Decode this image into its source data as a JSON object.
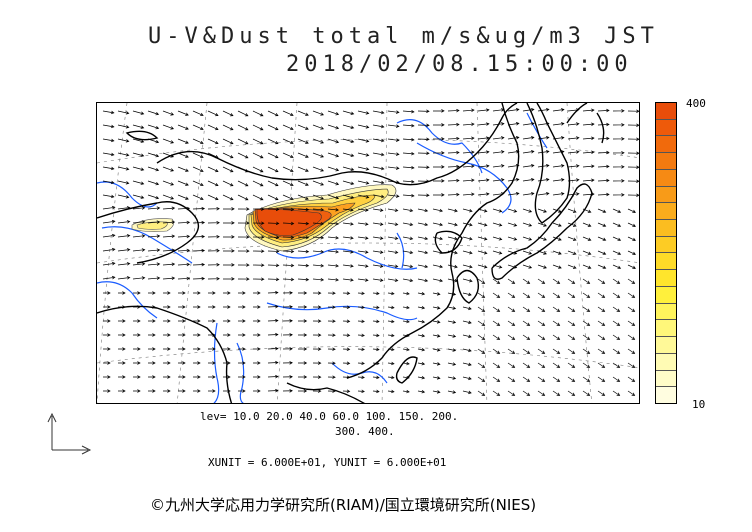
{
  "header": {
    "title": "U-V&Dust total m/s&ug/m3 JST",
    "datetime": "2018/02/08.15:00:00"
  },
  "colorbar": {
    "max_label": "400",
    "min_label": "10",
    "colors": [
      "#e84d0a",
      "#ee5a0a",
      "#f16a0c",
      "#f37a10",
      "#f68a14",
      "#f89b18",
      "#faac1c",
      "#fbbd20",
      "#fdcc24",
      "#fedb28",
      "#ffe52c",
      "#fff03c",
      "#fff45c",
      "#fff77a",
      "#fff998",
      "#fffbb4",
      "#fffcc8",
      "#fffde0"
    ]
  },
  "levels": {
    "line1": "lev= 10.0 20.0 40.0 60.0 100. 150. 200.",
    "line2": "300. 400."
  },
  "units_line": "XUNIT = 6.000E+01, YUNIT = 6.000E+01",
  "credit": "©九州大学応用力学研究所(RIAM)/国立環境研究所(NIES)",
  "map": {
    "dust_colors": [
      "#fff8c0",
      "#ffee80",
      "#ffd040",
      "#fda020",
      "#f06010",
      "#e84d0a"
    ],
    "coast_color": "#000000",
    "river_color": "#1a5cff",
    "arrow_color": "#000000"
  }
}
